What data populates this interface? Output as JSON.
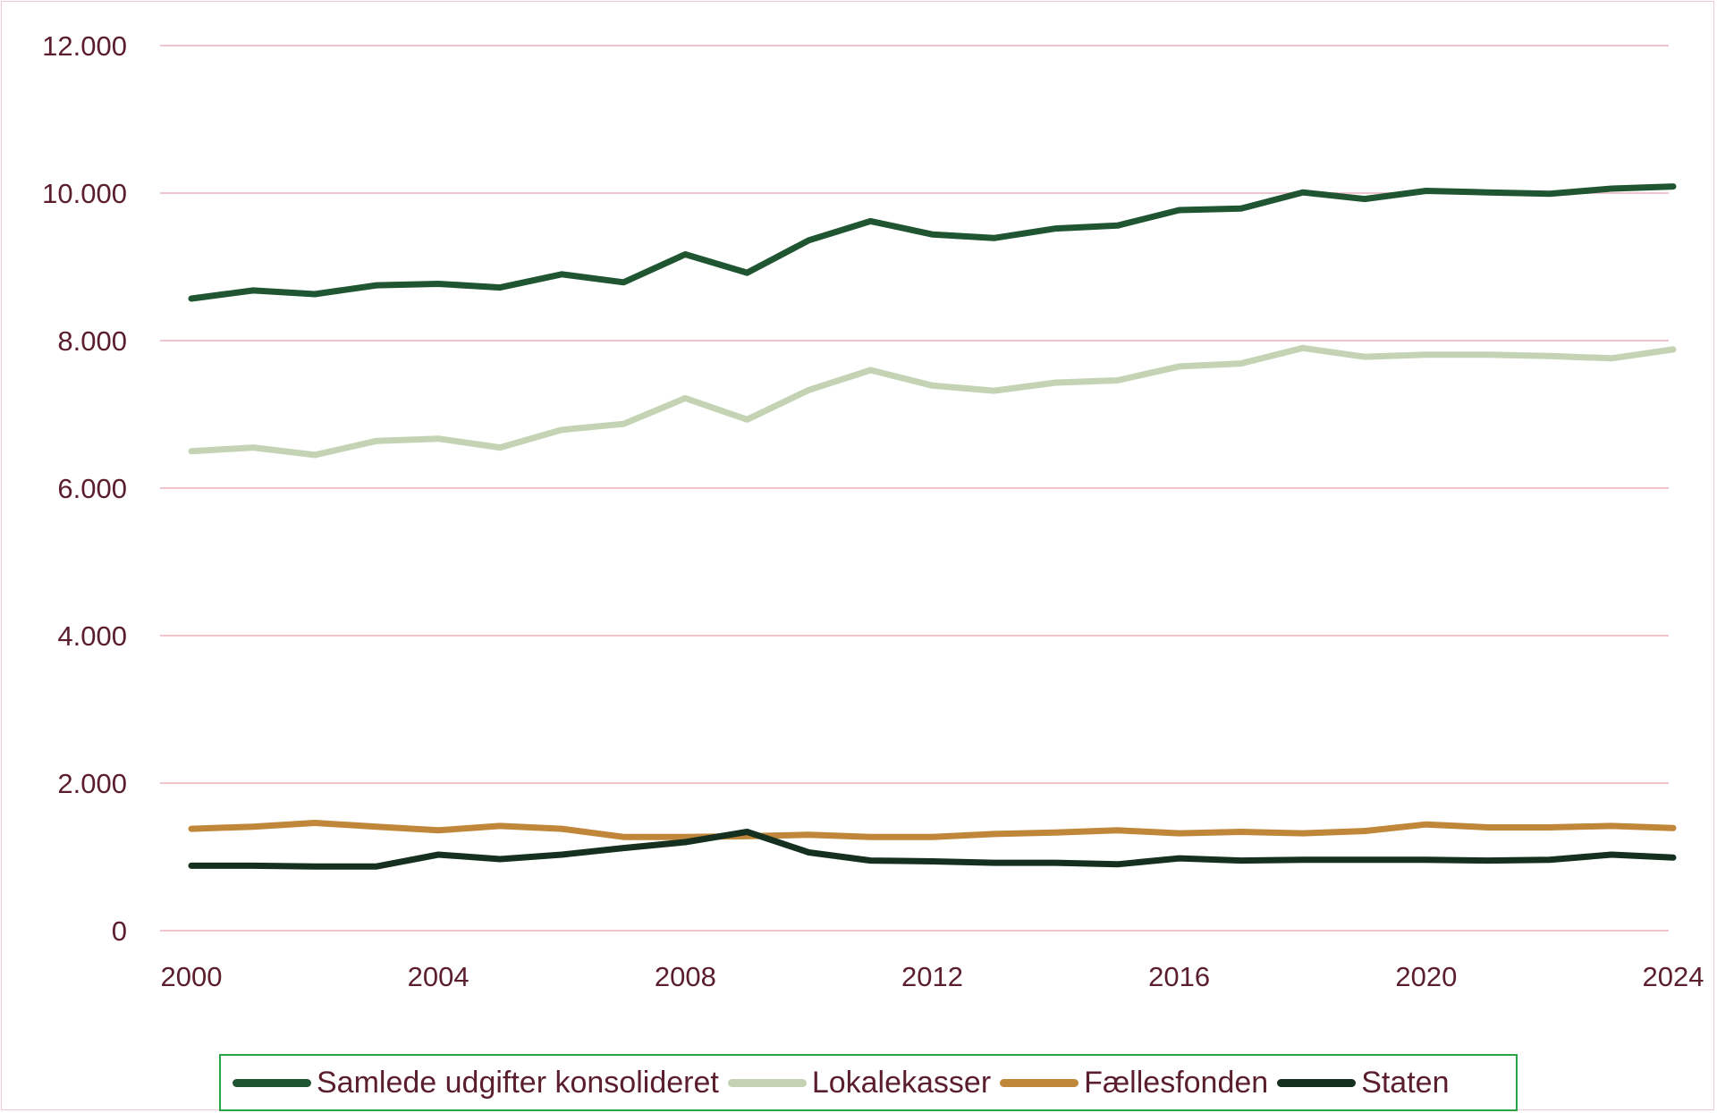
{
  "chart_data": {
    "type": "line",
    "title": "",
    "xlabel": "",
    "ylabel": "",
    "ylim": [
      0,
      12000
    ],
    "yticks": [
      0,
      2000,
      4000,
      6000,
      8000,
      10000,
      12000
    ],
    "ytick_labels": [
      "0",
      "2.000",
      "4.000",
      "6.000",
      "8.000",
      "10.000",
      "12.000"
    ],
    "xlim": [
      2000,
      2024
    ],
    "xticks": [
      2000,
      2004,
      2008,
      2012,
      2016,
      2020,
      2024
    ],
    "xtick_labels": [
      "2000",
      "2004",
      "2008",
      "2012",
      "2016",
      "2020",
      "2024"
    ],
    "grid": "horizontal",
    "legend_position": "bottom",
    "x": [
      2000,
      2001,
      2002,
      2003,
      2004,
      2005,
      2006,
      2007,
      2008,
      2009,
      2010,
      2011,
      2012,
      2013,
      2014,
      2015,
      2016,
      2017,
      2018,
      2019,
      2020,
      2021,
      2022,
      2023,
      2024
    ],
    "series": [
      {
        "name": "Samlede udgifter konsolideret",
        "color": "#1f5631",
        "values": [
          8570,
          8680,
          8630,
          8750,
          8770,
          8720,
          8900,
          8790,
          9170,
          8920,
          9360,
          9620,
          9440,
          9390,
          9520,
          9560,
          9770,
          9790,
          10010,
          9920,
          10030,
          10010,
          9990,
          10060,
          10090
        ]
      },
      {
        "name": "Lokalekasser",
        "color": "#c3d3b3",
        "values": [
          6500,
          6550,
          6450,
          6640,
          6670,
          6550,
          6790,
          6870,
          7220,
          6930,
          7330,
          7600,
          7390,
          7320,
          7430,
          7460,
          7650,
          7690,
          7900,
          7780,
          7810,
          7810,
          7790,
          7760,
          7880
        ]
      },
      {
        "name": "Fællesfonden",
        "color": "#c0873a",
        "values": [
          1380,
          1410,
          1460,
          1410,
          1360,
          1420,
          1380,
          1270,
          1270,
          1280,
          1300,
          1270,
          1270,
          1310,
          1330,
          1360,
          1320,
          1340,
          1320,
          1350,
          1440,
          1400,
          1400,
          1420,
          1390
        ]
      },
      {
        "name": "Staten",
        "color": "#15301e",
        "values": [
          880,
          880,
          870,
          870,
          1030,
          970,
          1030,
          1120,
          1200,
          1340,
          1060,
          950,
          940,
          920,
          920,
          900,
          980,
          950,
          960,
          960,
          960,
          950,
          960,
          1030,
          990
        ]
      }
    ]
  }
}
